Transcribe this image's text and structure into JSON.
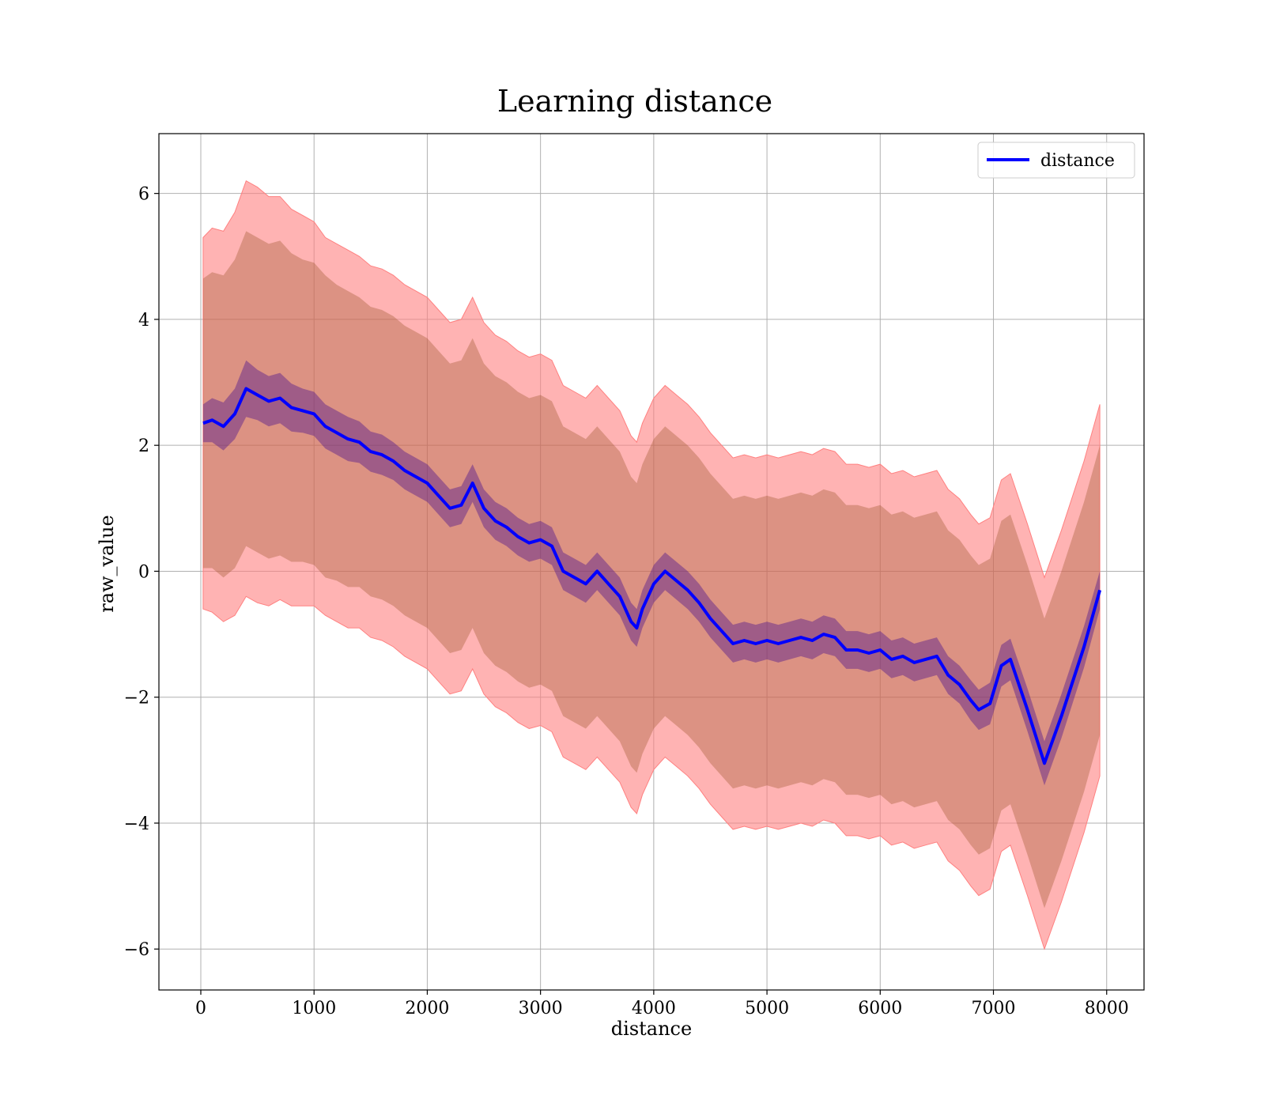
{
  "chart_data": {
    "type": "line",
    "title": "Learning distance",
    "xlabel": "distance",
    "ylabel": "raw_value",
    "xlim": [
      -370,
      8330
    ],
    "ylim": [
      -6.65,
      6.95
    ],
    "xticks": [
      0,
      1000,
      2000,
      3000,
      4000,
      5000,
      6000,
      7000,
      8000
    ],
    "yticks": [
      -6,
      -4,
      -2,
      0,
      2,
      4,
      6
    ],
    "xtick_labels": [
      "0",
      "1000",
      "2000",
      "3000",
      "4000",
      "5000",
      "6000",
      "7000",
      "8000"
    ],
    "ytick_labels": [
      "−6",
      "−4",
      "−2",
      "0",
      "2",
      "4",
      "6"
    ],
    "grid": true,
    "legend": {
      "position": "top-right",
      "entries": [
        "distance"
      ]
    },
    "colors": {
      "line": "#0000ff",
      "outer_band": "#ff8080",
      "inner_band": "#8b4513",
      "mean_band": "#551a8b"
    },
    "series": [
      {
        "name": "distance",
        "x": [
          20,
          100,
          200,
          300,
          400,
          500,
          600,
          700,
          800,
          900,
          1000,
          1100,
          1200,
          1300,
          1400,
          1500,
          1600,
          1700,
          1800,
          1900,
          2000,
          2100,
          2200,
          2300,
          2400,
          2500,
          2600,
          2700,
          2800,
          2900,
          3000,
          3100,
          3200,
          3300,
          3400,
          3500,
          3600,
          3700,
          3800,
          3850,
          3900,
          4000,
          4100,
          4200,
          4300,
          4400,
          4500,
          4600,
          4700,
          4800,
          4900,
          5000,
          5100,
          5200,
          5300,
          5400,
          5500,
          5600,
          5700,
          5800,
          5900,
          6000,
          6100,
          6200,
          6300,
          6400,
          6500,
          6600,
          6700,
          6800,
          6870,
          6970,
          7070,
          7150,
          7300,
          7450,
          7600,
          7800,
          7940
        ],
        "y": [
          2.35,
          2.4,
          2.3,
          2.5,
          2.9,
          2.8,
          2.7,
          2.75,
          2.6,
          2.55,
          2.5,
          2.3,
          2.2,
          2.1,
          2.05,
          1.9,
          1.85,
          1.75,
          1.6,
          1.5,
          1.4,
          1.2,
          1.0,
          1.05,
          1.4,
          1.0,
          0.8,
          0.7,
          0.55,
          0.45,
          0.5,
          0.4,
          0.0,
          -0.1,
          -0.2,
          0.0,
          -0.2,
          -0.4,
          -0.8,
          -0.9,
          -0.6,
          -0.2,
          0.0,
          -0.15,
          -0.3,
          -0.5,
          -0.75,
          -0.95,
          -1.15,
          -1.1,
          -1.15,
          -1.1,
          -1.15,
          -1.1,
          -1.05,
          -1.1,
          -1.0,
          -1.05,
          -1.25,
          -1.25,
          -1.3,
          -1.25,
          -1.4,
          -1.35,
          -1.45,
          -1.4,
          -1.35,
          -1.65,
          -1.8,
          -2.05,
          -2.2,
          -2.1,
          -1.5,
          -1.4,
          -2.2,
          -3.05,
          -2.3,
          -1.2,
          -0.3
        ],
        "mean_band_halfwidth": [
          0.3,
          0.35,
          0.38,
          0.4,
          0.45,
          0.4,
          0.4,
          0.4,
          0.38,
          0.35,
          0.35,
          0.35,
          0.35,
          0.35,
          0.33,
          0.32,
          0.32,
          0.3,
          0.3,
          0.3,
          0.3,
          0.3,
          0.3,
          0.3,
          0.3,
          0.3,
          0.3,
          0.3,
          0.3,
          0.3,
          0.3,
          0.3,
          0.3,
          0.3,
          0.3,
          0.3,
          0.3,
          0.3,
          0.3,
          0.3,
          0.3,
          0.3,
          0.3,
          0.3,
          0.3,
          0.3,
          0.3,
          0.3,
          0.3,
          0.3,
          0.3,
          0.3,
          0.3,
          0.3,
          0.3,
          0.3,
          0.3,
          0.3,
          0.3,
          0.3,
          0.3,
          0.3,
          0.3,
          0.3,
          0.3,
          0.3,
          0.3,
          0.3,
          0.3,
          0.32,
          0.32,
          0.33,
          0.33,
          0.33,
          0.34,
          0.35,
          0.35,
          0.33,
          0.3
        ],
        "inner_band_halfwidth": [
          2.3,
          2.35,
          2.4,
          2.45,
          2.5,
          2.5,
          2.5,
          2.5,
          2.45,
          2.4,
          2.4,
          2.4,
          2.35,
          2.35,
          2.3,
          2.3,
          2.3,
          2.3,
          2.3,
          2.3,
          2.3,
          2.3,
          2.3,
          2.3,
          2.3,
          2.3,
          2.3,
          2.3,
          2.3,
          2.3,
          2.3,
          2.3,
          2.3,
          2.3,
          2.3,
          2.3,
          2.3,
          2.3,
          2.3,
          2.3,
          2.3,
          2.3,
          2.3,
          2.3,
          2.3,
          2.3,
          2.3,
          2.3,
          2.3,
          2.3,
          2.3,
          2.3,
          2.3,
          2.3,
          2.3,
          2.3,
          2.3,
          2.3,
          2.3,
          2.3,
          2.3,
          2.3,
          2.3,
          2.3,
          2.3,
          2.3,
          2.3,
          2.3,
          2.3,
          2.3,
          2.3,
          2.3,
          2.3,
          2.3,
          2.3,
          2.3,
          2.3,
          2.3,
          2.3
        ],
        "outer_band_halfwidth": [
          2.95,
          3.05,
          3.1,
          3.2,
          3.3,
          3.3,
          3.25,
          3.2,
          3.15,
          3.1,
          3.05,
          3.0,
          3.0,
          3.0,
          2.95,
          2.95,
          2.95,
          2.95,
          2.95,
          2.95,
          2.95,
          2.95,
          2.95,
          2.95,
          2.95,
          2.95,
          2.95,
          2.95,
          2.95,
          2.95,
          2.95,
          2.95,
          2.95,
          2.95,
          2.95,
          2.95,
          2.95,
          2.95,
          2.95,
          2.95,
          2.95,
          2.95,
          2.95,
          2.95,
          2.95,
          2.95,
          2.95,
          2.95,
          2.95,
          2.95,
          2.95,
          2.95,
          2.95,
          2.95,
          2.95,
          2.95,
          2.95,
          2.95,
          2.95,
          2.95,
          2.95,
          2.95,
          2.95,
          2.95,
          2.95,
          2.95,
          2.95,
          2.95,
          2.95,
          2.95,
          2.95,
          2.95,
          2.95,
          2.95,
          2.95,
          2.95,
          2.95,
          2.95,
          2.95
        ]
      }
    ]
  }
}
